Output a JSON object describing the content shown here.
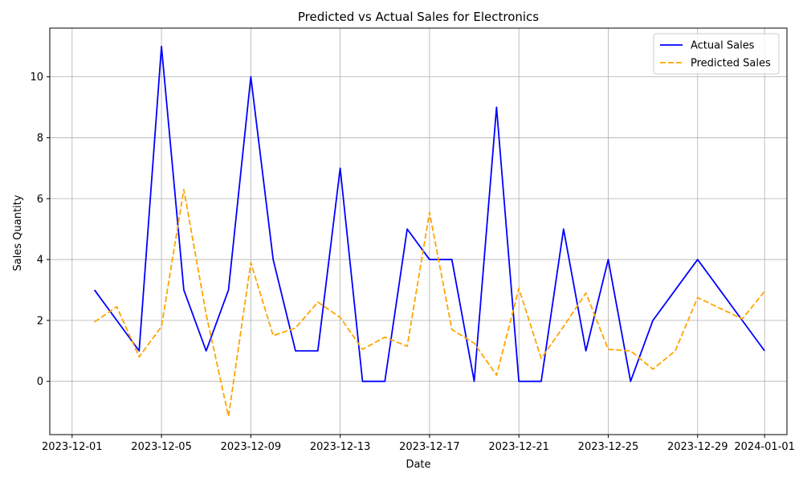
{
  "chart_data": {
    "type": "line",
    "title": "Predicted vs Actual Sales for Electronics",
    "xlabel": "Date",
    "ylabel": "Sales Quantity",
    "x": [
      "2023-12-02",
      "2023-12-03",
      "2023-12-04",
      "2023-12-05",
      "2023-12-06",
      "2023-12-07",
      "2023-12-08",
      "2023-12-09",
      "2023-12-10",
      "2023-12-11",
      "2023-12-12",
      "2023-12-13",
      "2023-12-14",
      "2023-12-15",
      "2023-12-16",
      "2023-12-17",
      "2023-12-18",
      "2023-12-19",
      "2023-12-20",
      "2023-12-21",
      "2023-12-22",
      "2023-12-23",
      "2023-12-24",
      "2023-12-25",
      "2023-12-26",
      "2023-12-27",
      "2023-12-28",
      "2023-12-29",
      "2023-12-30",
      "2023-12-31",
      "2024-01-01"
    ],
    "series": [
      {
        "name": "Actual Sales",
        "color": "#0000ff",
        "style": "solid",
        "values": [
          3,
          2,
          1,
          11,
          3,
          1,
          3,
          10,
          4,
          1,
          1,
          7,
          0,
          0,
          5,
          4,
          4,
          0,
          9,
          0,
          0,
          5,
          1,
          4,
          0,
          2,
          3,
          4,
          3,
          2,
          1
        ]
      },
      {
        "name": "Predicted Sales",
        "color": "#ffa500",
        "style": "dashed",
        "values": [
          1.95,
          2.45,
          0.8,
          1.8,
          6.3,
          2.2,
          -1.15,
          3.9,
          1.5,
          1.75,
          2.6,
          2.1,
          1.05,
          1.45,
          1.15,
          5.55,
          1.7,
          1.25,
          0.2,
          3.05,
          0.75,
          1.8,
          2.9,
          1.05,
          1.0,
          0.4,
          1.0,
          2.75,
          2.4,
          2.05,
          2.95
        ]
      }
    ],
    "xticks": [
      "2023-12-01",
      "2023-12-05",
      "2023-12-09",
      "2023-12-13",
      "2023-12-17",
      "2023-12-21",
      "2023-12-25",
      "2023-12-29",
      "2024-01-01"
    ],
    "yticks": [
      0,
      2,
      4,
      6,
      8,
      10
    ],
    "xlim": [
      "2023-11-30",
      "2024-01-02"
    ],
    "ylim": [
      -1.75,
      11.6
    ],
    "grid": true,
    "legend_position": "top-right"
  }
}
